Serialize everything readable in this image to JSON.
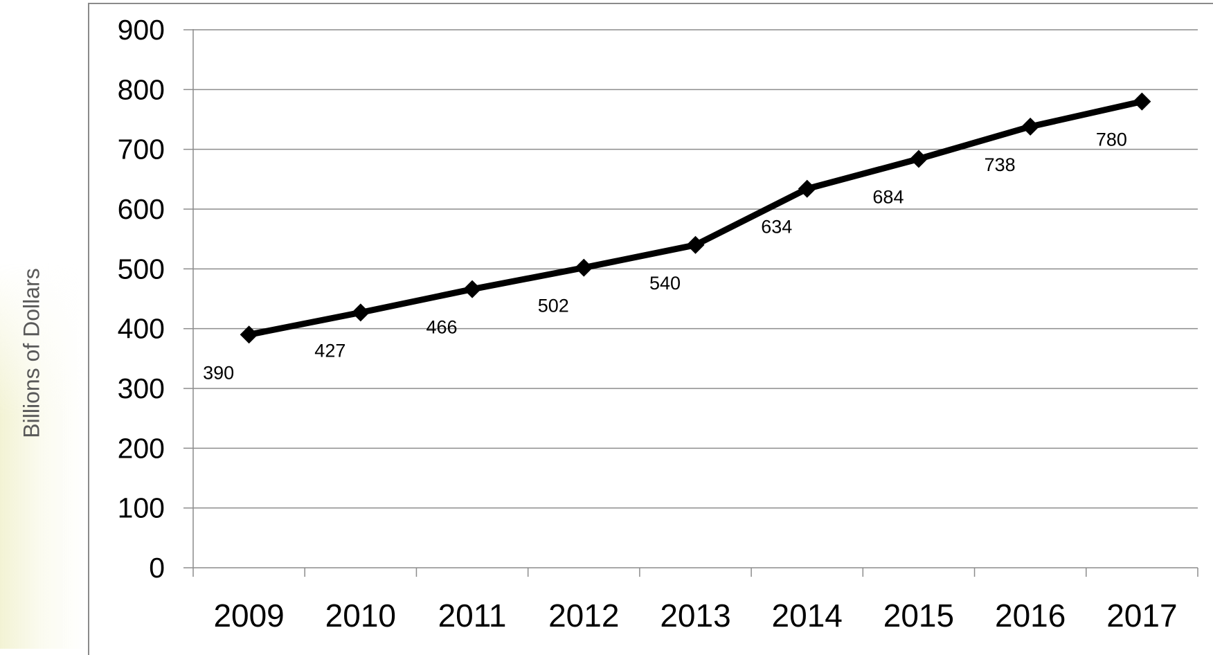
{
  "chart_data": {
    "type": "line",
    "categories": [
      "2009",
      "2010",
      "2011",
      "2012",
      "2013",
      "2014",
      "2015",
      "2016",
      "2017"
    ],
    "series": [
      {
        "values": [
          390,
          427,
          466,
          502,
          540,
          634,
          684,
          738,
          780
        ]
      }
    ],
    "data_labels": [
      "390",
      "427",
      "466",
      "502",
      "540",
      "634",
      "684",
      "738",
      "780"
    ],
    "title": "",
    "xlabel": "",
    "ylabel": "Billions of Dollars",
    "ylim": [
      0,
      900
    ],
    "yticks": [
      "0",
      "100",
      "200",
      "300",
      "400",
      "500",
      "600",
      "700",
      "800",
      "900"
    ],
    "grid": true,
    "line_color": "#000000",
    "marker": "diamond"
  }
}
